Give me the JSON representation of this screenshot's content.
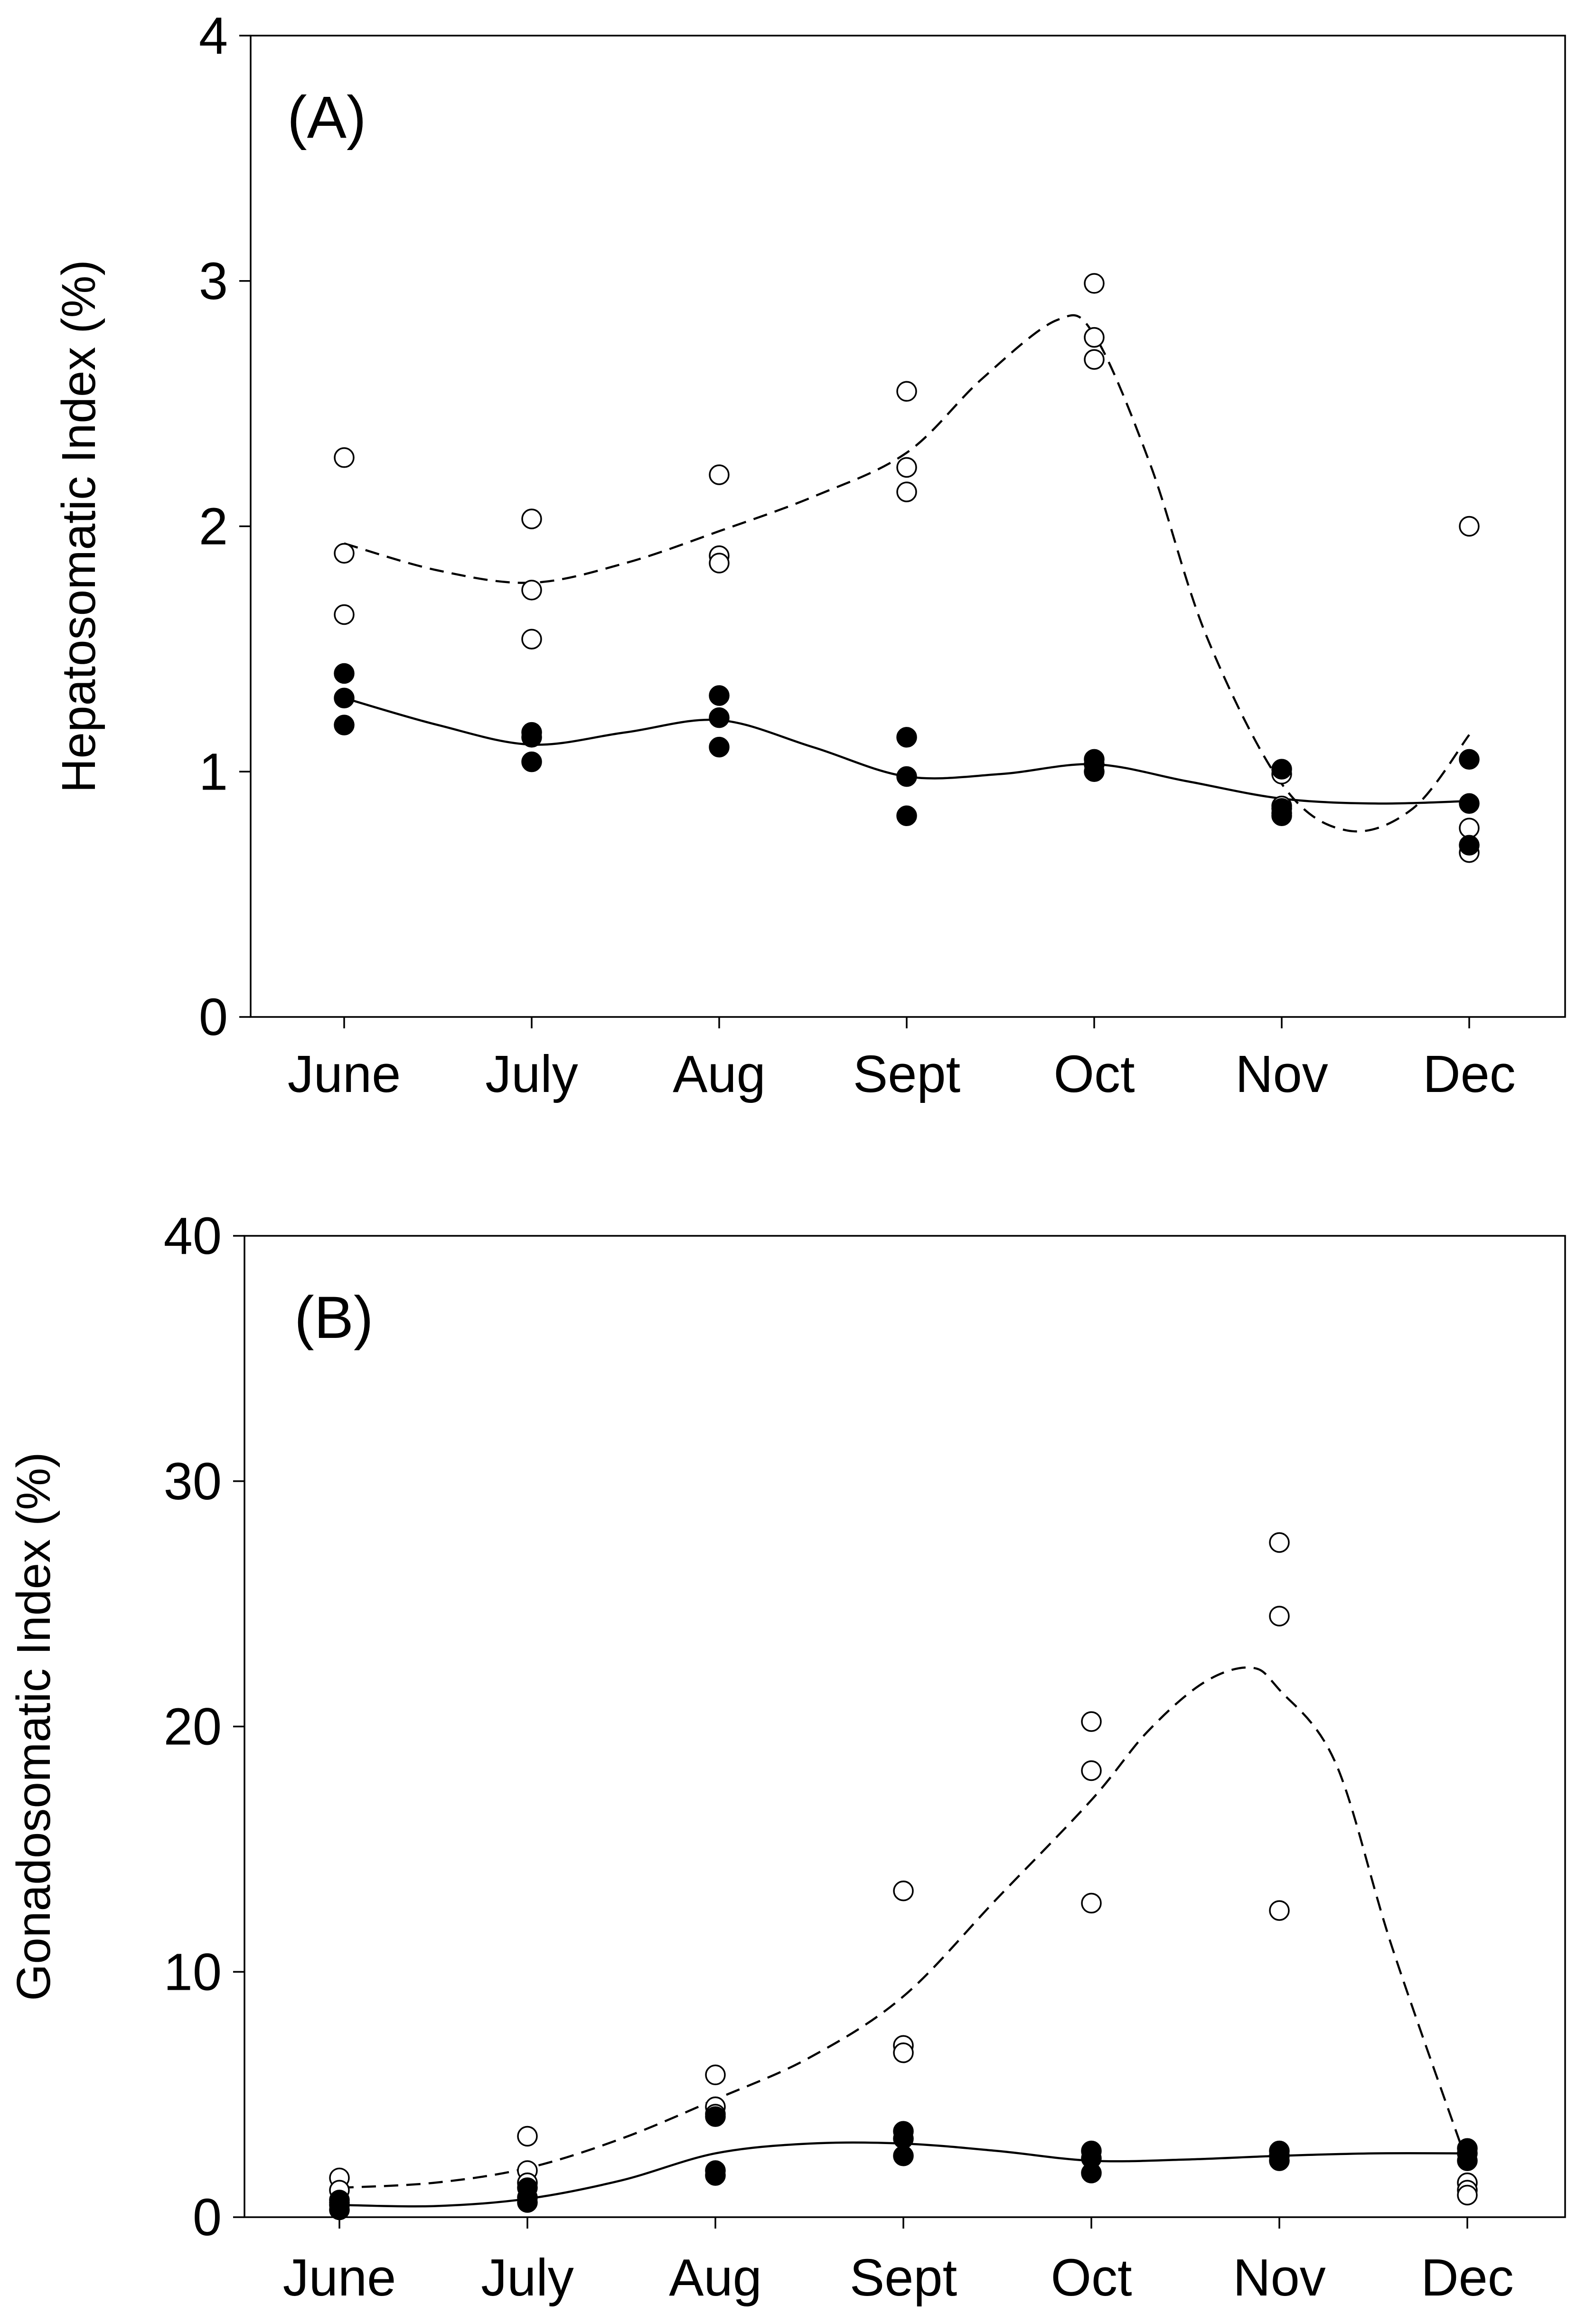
{
  "chart_data": [
    {
      "type": "scatter",
      "panel_label": "(A)",
      "title": "",
      "xlabel": "",
      "ylabel": "Hepatosomatic Index (%)",
      "categories": [
        "June",
        "July",
        "Aug",
        "Sept",
        "Oct",
        "Nov",
        "Dec"
      ],
      "ylim": [
        0,
        4
      ],
      "yticks": [
        0,
        1,
        2,
        3,
        4
      ],
      "grid": false,
      "series": [
        {
          "name": "open circles",
          "marker": "open-circle",
          "points": [
            [
              0,
              2.28
            ],
            [
              0,
              1.89
            ],
            [
              0,
              1.64
            ],
            [
              1,
              2.03
            ],
            [
              1,
              1.74
            ],
            [
              1,
              1.54
            ],
            [
              2,
              2.21
            ],
            [
              2,
              1.88
            ],
            [
              2,
              1.85
            ],
            [
              3,
              2.55
            ],
            [
              3,
              2.24
            ],
            [
              3,
              2.14
            ],
            [
              4,
              2.99
            ],
            [
              4,
              2.77
            ],
            [
              4,
              2.68
            ],
            [
              5,
              0.99
            ],
            [
              5,
              0.86
            ],
            [
              5,
              0.83
            ],
            [
              6,
              2.0
            ],
            [
              6,
              0.77
            ],
            [
              6,
              0.67
            ]
          ],
          "trend": {
            "style": "dashed",
            "x": [
              0,
              0.5,
              1,
              1.5,
              2,
              2.5,
              3,
              3.4,
              3.8,
              4,
              4.3,
              4.6,
              5,
              5.35,
              5.7,
              6
            ],
            "y": [
              1.93,
              1.82,
              1.77,
              1.85,
              1.98,
              2.12,
              2.3,
              2.6,
              2.84,
              2.78,
              2.25,
              1.55,
              0.95,
              0.76,
              0.85,
              1.15
            ]
          }
        },
        {
          "name": "filled circles",
          "marker": "filled-circle",
          "points": [
            [
              0,
              1.4
            ],
            [
              0,
              1.3
            ],
            [
              0,
              1.19
            ],
            [
              1,
              1.16
            ],
            [
              1,
              1.14
            ],
            [
              1,
              1.04
            ],
            [
              2,
              1.31
            ],
            [
              2,
              1.22
            ],
            [
              2,
              1.1
            ],
            [
              3,
              1.14
            ],
            [
              3,
              0.98
            ],
            [
              3,
              0.82
            ],
            [
              4,
              1.05
            ],
            [
              4,
              1.03
            ],
            [
              4,
              1.0
            ],
            [
              5,
              1.01
            ],
            [
              5,
              0.85
            ],
            [
              5,
              0.82
            ],
            [
              6,
              1.05
            ],
            [
              6,
              0.87
            ],
            [
              6,
              0.7
            ]
          ],
          "trend": {
            "style": "solid",
            "x": [
              0,
              0.5,
              1,
              1.5,
              2,
              2.5,
              3,
              3.5,
              4,
              4.5,
              5,
              5.5,
              6
            ],
            "y": [
              1.3,
              1.19,
              1.11,
              1.16,
              1.21,
              1.1,
              0.98,
              0.99,
              1.03,
              0.96,
              0.89,
              0.87,
              0.88
            ]
          }
        }
      ]
    },
    {
      "type": "scatter",
      "panel_label": "(B)",
      "title": "",
      "xlabel": "",
      "ylabel": "Gonadosomatic Index (%)",
      "categories": [
        "June",
        "July",
        "Aug",
        "Sept",
        "Oct",
        "Nov",
        "Dec"
      ],
      "ylim": [
        0,
        40
      ],
      "yticks": [
        0,
        10,
        20,
        30,
        40
      ],
      "grid": false,
      "series": [
        {
          "name": "open circles",
          "marker": "open-circle",
          "points": [
            [
              0,
              1.6
            ],
            [
              0,
              1.1
            ],
            [
              0,
              0.6
            ],
            [
              1,
              3.3
            ],
            [
              1,
              1.9
            ],
            [
              1,
              1.4
            ],
            [
              2,
              5.8
            ],
            [
              2,
              4.5
            ],
            [
              2,
              4.2
            ],
            [
              3,
              13.3
            ],
            [
              3,
              7.0
            ],
            [
              3,
              6.7
            ],
            [
              4,
              20.2
            ],
            [
              4,
              18.2
            ],
            [
              4,
              12.8
            ],
            [
              5,
              27.5
            ],
            [
              5,
              24.5
            ],
            [
              5,
              12.5
            ],
            [
              6,
              1.4
            ],
            [
              6,
              1.1
            ],
            [
              6,
              0.9
            ]
          ],
          "trend": {
            "style": "dashed",
            "x": [
              0,
              0.5,
              1,
              1.5,
              2,
              2.5,
              3,
              3.5,
              4,
              4.3,
              4.6,
              4.85,
              5,
              5.3,
              5.6,
              6
            ],
            "y": [
              1.2,
              1.4,
              2.0,
              3.2,
              4.8,
              6.5,
              9.0,
              13.0,
              17.0,
              19.8,
              21.8,
              22.4,
              21.5,
              18.5,
              11.0,
              2.2
            ]
          }
        },
        {
          "name": "filled circles",
          "marker": "filled-circle",
          "points": [
            [
              0,
              0.7
            ],
            [
              0,
              0.5
            ],
            [
              0,
              0.3
            ],
            [
              1,
              1.2
            ],
            [
              1,
              0.8
            ],
            [
              1,
              0.6
            ],
            [
              2,
              4.1
            ],
            [
              2,
              1.9
            ],
            [
              2,
              1.7
            ],
            [
              3,
              3.5
            ],
            [
              3,
              3.2
            ],
            [
              3,
              2.5
            ],
            [
              4,
              2.7
            ],
            [
              4,
              2.4
            ],
            [
              4,
              1.8
            ],
            [
              5,
              2.7
            ],
            [
              5,
              2.5
            ],
            [
              5,
              2.3
            ],
            [
              6,
              2.8
            ],
            [
              6,
              2.6
            ],
            [
              6,
              2.3
            ]
          ],
          "trend": {
            "style": "solid",
            "x": [
              0,
              0.5,
              1,
              1.5,
              2,
              2.5,
              3,
              3.5,
              4,
              4.5,
              5,
              5.5,
              6
            ],
            "y": [
              0.5,
              0.45,
              0.75,
              1.5,
              2.6,
              3.0,
              3.0,
              2.7,
              2.3,
              2.35,
              2.5,
              2.6,
              2.6
            ]
          }
        }
      ]
    }
  ]
}
